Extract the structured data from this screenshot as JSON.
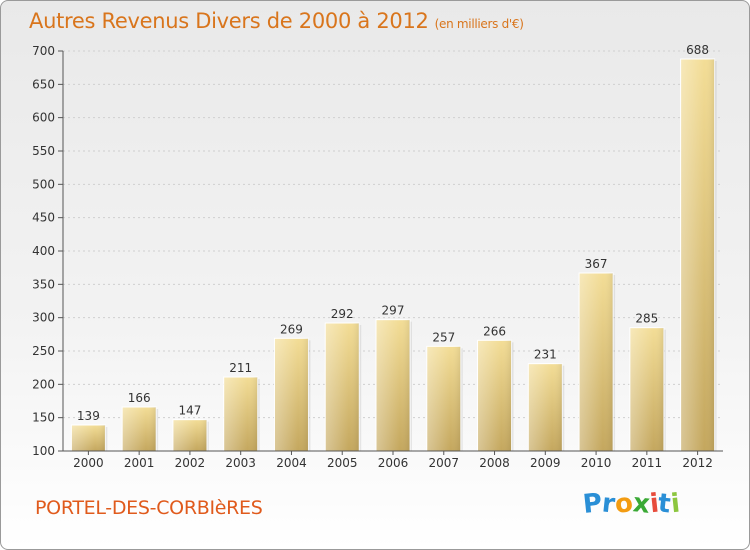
{
  "title": "Autres Revenus Divers de 2000 à 2012",
  "unit": "(en milliers d'€)",
  "commune": "PORTEL-DES-CORBIèRES",
  "logo": {
    "letters": [
      "P",
      "r",
      "o",
      "x",
      "i",
      "t",
      "i"
    ],
    "colors": [
      "#2a8fd6",
      "#2a8fd6",
      "#f39c12",
      "#3aa935",
      "#e74c3c",
      "#2a8fd6",
      "#8cc63f"
    ]
  },
  "colors": {
    "bar_top": "#f3dd96",
    "bar_bottom": "#c4a75e",
    "title": "#d9751c",
    "commune": "#e05a1c"
  },
  "chart_data": {
    "type": "bar",
    "categories": [
      "2000",
      "2001",
      "2002",
      "2003",
      "2004",
      "2005",
      "2006",
      "2007",
      "2008",
      "2009",
      "2010",
      "2011",
      "2012"
    ],
    "values": [
      139,
      166,
      147,
      211,
      269,
      292,
      297,
      257,
      266,
      231,
      367,
      285,
      688
    ],
    "ylim": [
      100,
      700
    ],
    "yticks": [
      100,
      150,
      200,
      250,
      300,
      350,
      400,
      450,
      500,
      550,
      600,
      650,
      700
    ],
    "grid": true
  }
}
